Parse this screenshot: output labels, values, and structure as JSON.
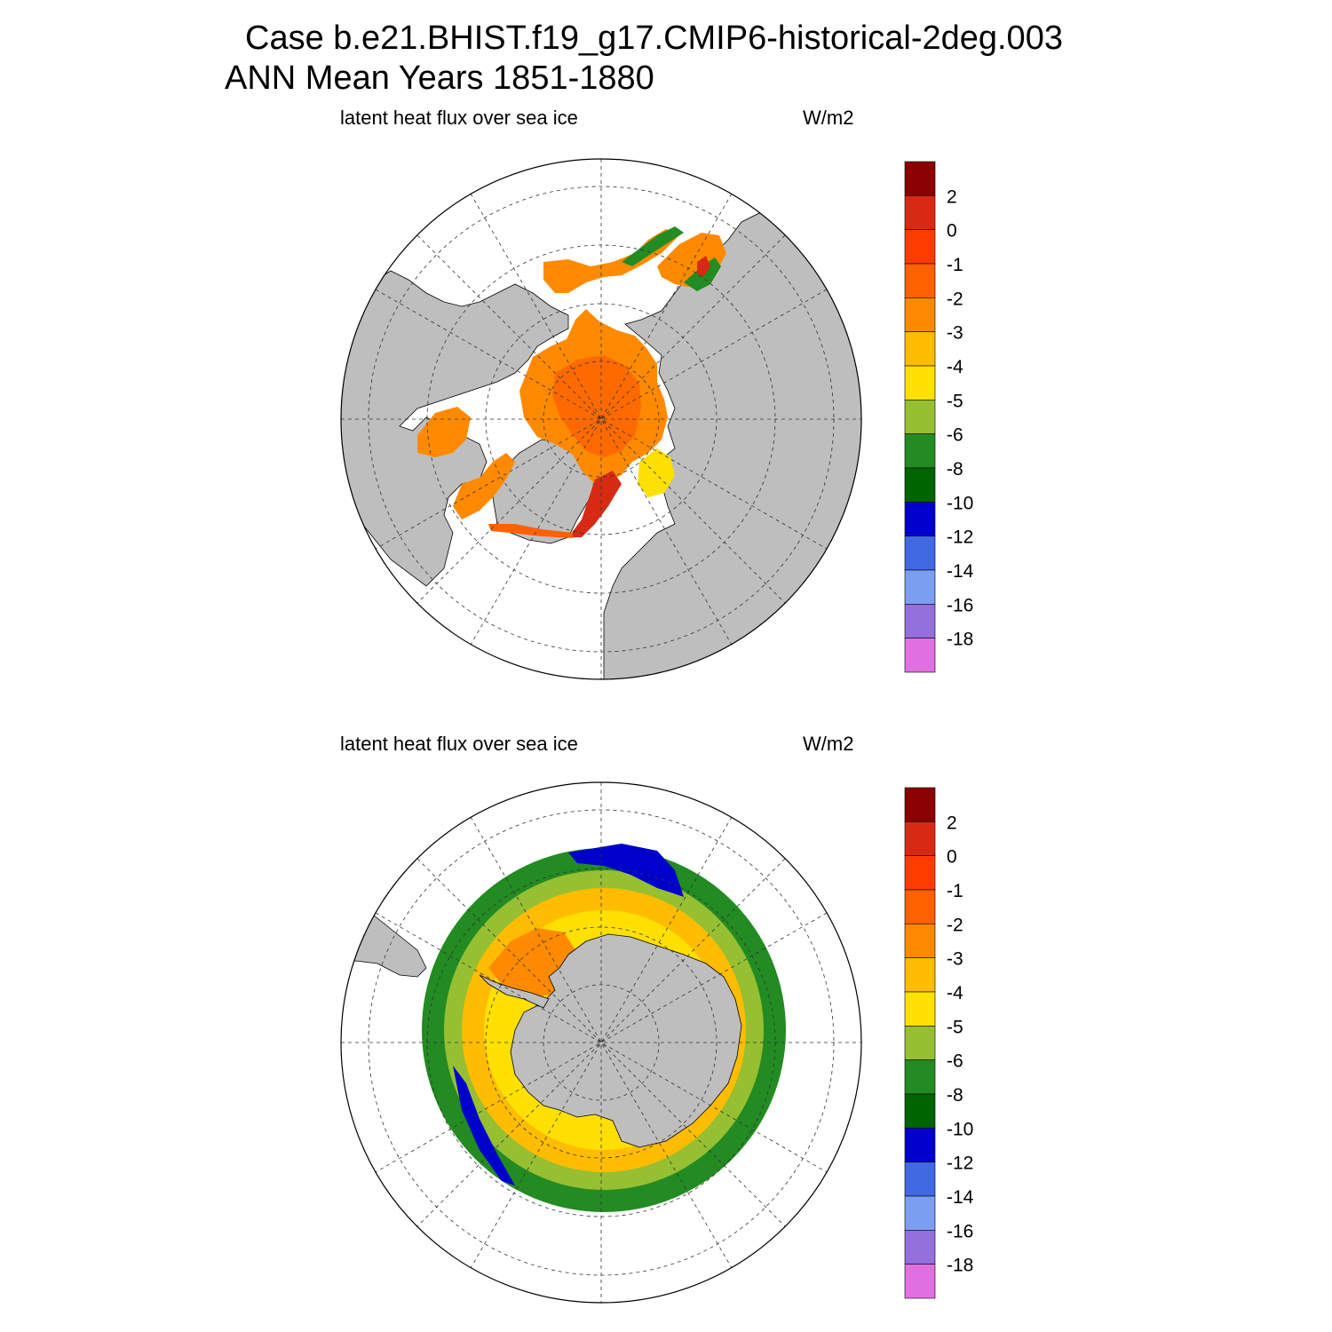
{
  "title_line1": "Case b.e21.BHIST.f19_g17.CMIP6-historical-2deg.003",
  "title_line2": "ANN Mean    Years 1851-1880",
  "panels": [
    {
      "name": "north",
      "left_label": "latent heat flux over sea ice",
      "right_label": "W/m2"
    },
    {
      "name": "south",
      "left_label": "latent heat flux over sea ice",
      "right_label": "W/m2"
    }
  ],
  "colorbar": {
    "colors": [
      "#8b0000",
      "#d62b12",
      "#ff3c00",
      "#ff6000",
      "#ff8a00",
      "#ffbc00",
      "#ffe000",
      "#96bf32",
      "#228b22",
      "#006400",
      "#0000cd",
      "#4169e1",
      "#7b9ef0",
      "#9370db",
      "#e070e0"
    ],
    "labels": [
      "2",
      "0",
      "-1",
      "-2",
      "-3",
      "-4",
      "-5",
      "-6",
      "-8",
      "-10",
      "-12",
      "-14",
      "-16",
      "-18"
    ]
  },
  "colors": {
    "land": "#bebebe",
    "background": "#ffffff"
  }
}
